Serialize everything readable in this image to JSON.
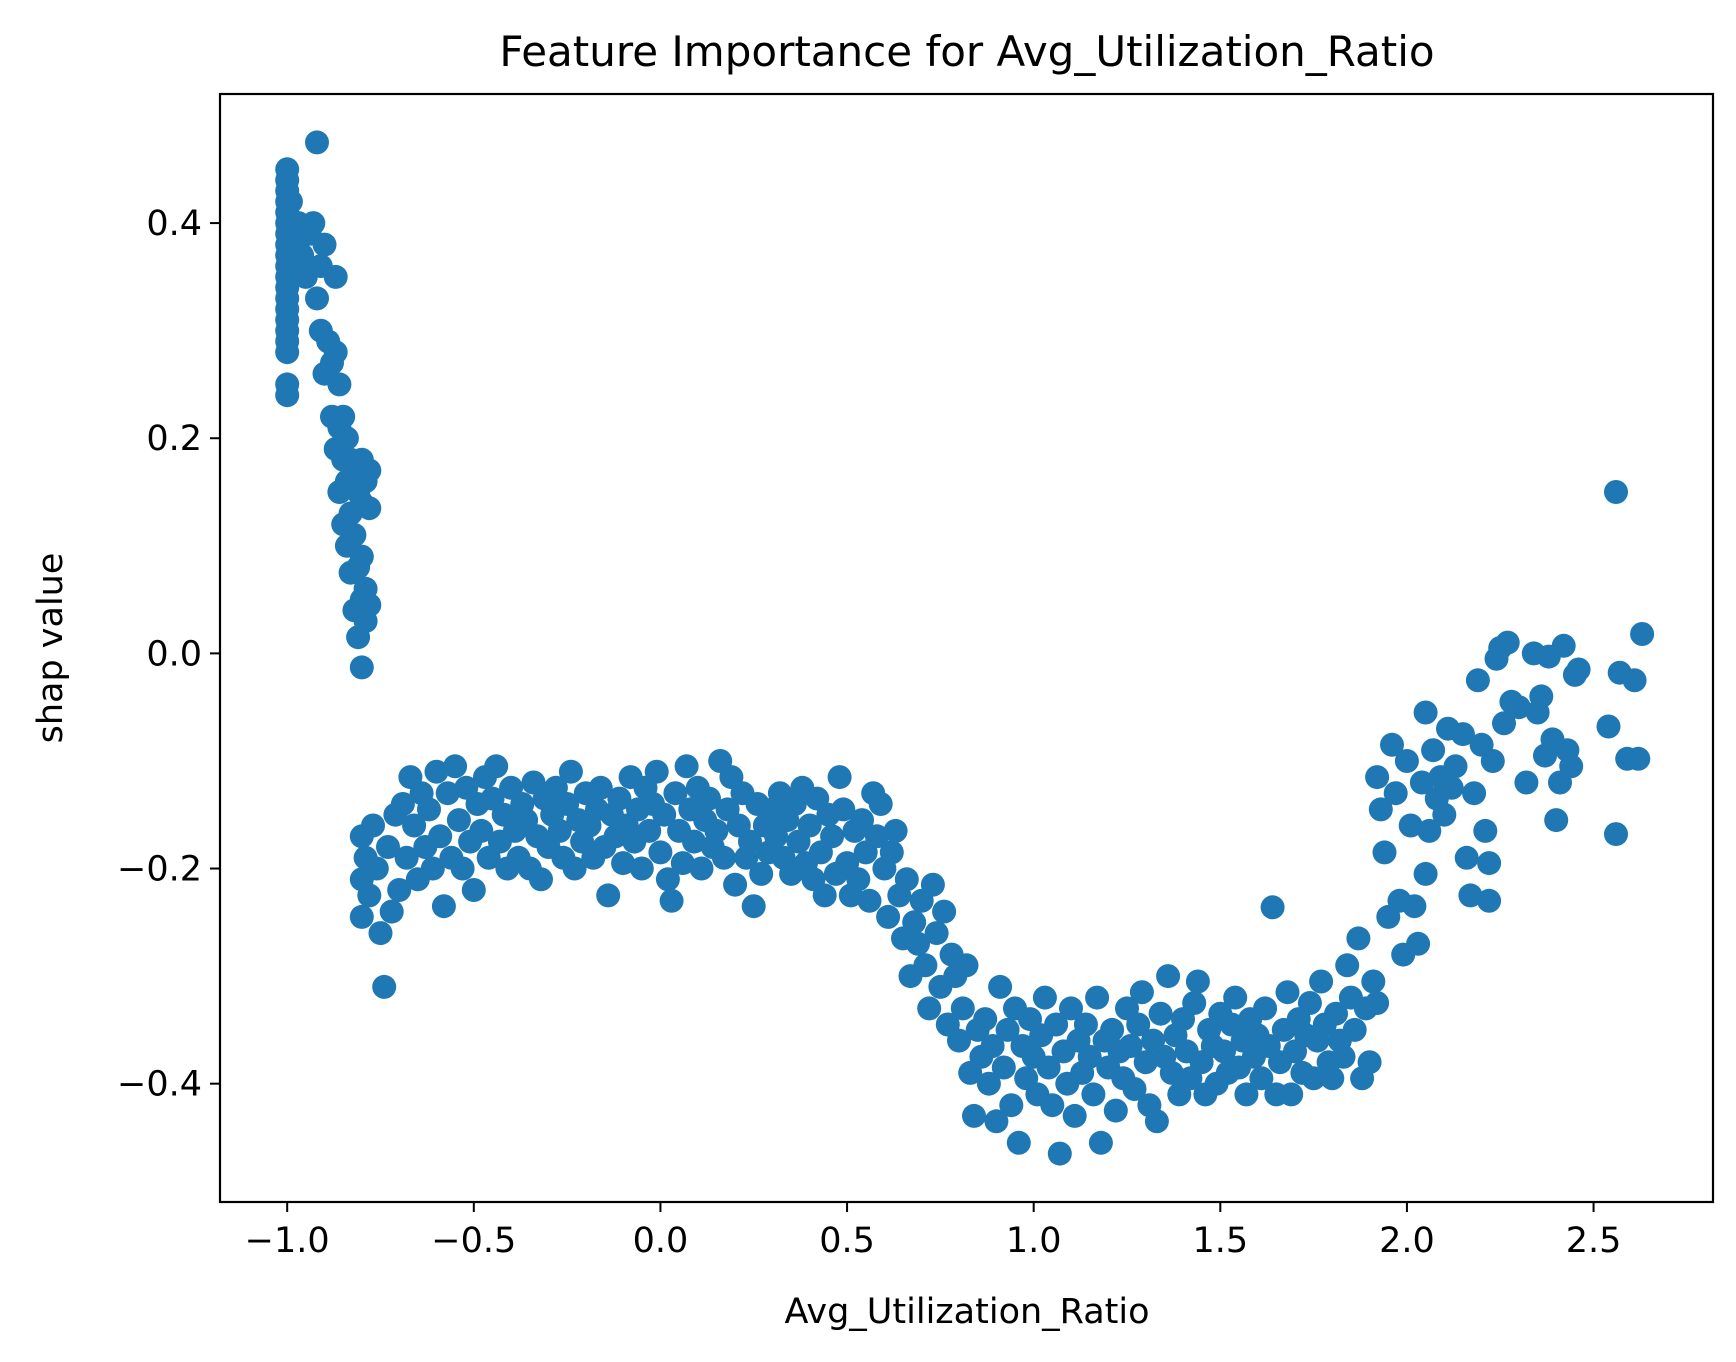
{
  "chart_data": {
    "type": "scatter",
    "title": "Feature Importance for Avg_Utilization_Ratio",
    "xlabel": "Avg_Utilization_Ratio",
    "ylabel": "shap value",
    "xlim": [
      -1.18,
      2.82
    ],
    "ylim": [
      -0.51,
      0.52
    ],
    "xticks": [
      -1.0,
      -0.5,
      0.0,
      0.5,
      1.0,
      1.5,
      2.0,
      2.5
    ],
    "xtick_labels": [
      "−1.0",
      "−0.5",
      "0.0",
      "0.5",
      "1.0",
      "1.5",
      "2.0",
      "2.5"
    ],
    "yticks": [
      -0.4,
      -0.2,
      0.0,
      0.2,
      0.4
    ],
    "ytick_labels": [
      "−0.4",
      "−0.2",
      "0.0",
      "0.2",
      "0.4"
    ],
    "grid": false,
    "color": "#1f77b4",
    "points": [
      [
        -1.0,
        0.45
      ],
      [
        -1.0,
        0.44
      ],
      [
        -1.0,
        0.43
      ],
      [
        -1.0,
        0.42
      ],
      [
        -1.0,
        0.41
      ],
      [
        -1.0,
        0.4
      ],
      [
        -1.0,
        0.39
      ],
      [
        -1.0,
        0.38
      ],
      [
        -1.0,
        0.37
      ],
      [
        -1.0,
        0.36
      ],
      [
        -1.0,
        0.35
      ],
      [
        -1.0,
        0.34
      ],
      [
        -1.0,
        0.33
      ],
      [
        -1.0,
        0.32
      ],
      [
        -1.0,
        0.31
      ],
      [
        -1.0,
        0.3
      ],
      [
        -1.0,
        0.29
      ],
      [
        -1.0,
        0.28
      ],
      [
        -1.0,
        0.25
      ],
      [
        -1.0,
        0.24
      ],
      [
        -0.99,
        0.42
      ],
      [
        -0.99,
        0.36
      ],
      [
        -0.98,
        0.38
      ],
      [
        -0.97,
        0.4
      ],
      [
        -0.96,
        0.37
      ],
      [
        -0.95,
        0.35
      ],
      [
        -0.94,
        0.39
      ],
      [
        -0.93,
        0.4
      ],
      [
        -0.92,
        0.475
      ],
      [
        -0.92,
        0.33
      ],
      [
        -0.91,
        0.36
      ],
      [
        -0.91,
        0.3
      ],
      [
        -0.9,
        0.38
      ],
      [
        -0.9,
        0.26
      ],
      [
        -0.89,
        0.29
      ],
      [
        -0.88,
        0.27
      ],
      [
        -0.88,
        0.22
      ],
      [
        -0.87,
        0.35
      ],
      [
        -0.87,
        0.28
      ],
      [
        -0.87,
        0.19
      ],
      [
        -0.86,
        0.25
      ],
      [
        -0.86,
        0.21
      ],
      [
        -0.86,
        0.15
      ],
      [
        -0.85,
        0.22
      ],
      [
        -0.85,
        0.18
      ],
      [
        -0.85,
        0.12
      ],
      [
        -0.84,
        0.2
      ],
      [
        -0.84,
        0.16
      ],
      [
        -0.84,
        0.1
      ],
      [
        -0.83,
        0.18
      ],
      [
        -0.83,
        0.13
      ],
      [
        -0.83,
        0.075
      ],
      [
        -0.82,
        0.17
      ],
      [
        -0.82,
        0.11
      ],
      [
        -0.82,
        0.04
      ],
      [
        -0.81,
        0.15
      ],
      [
        -0.81,
        0.08
      ],
      [
        -0.81,
        0.015
      ],
      [
        -0.8,
        0.18
      ],
      [
        -0.8,
        0.14
      ],
      [
        -0.8,
        0.09
      ],
      [
        -0.8,
        0.05
      ],
      [
        -0.8,
        -0.013
      ],
      [
        -0.79,
        0.16
      ],
      [
        -0.79,
        0.06
      ],
      [
        -0.79,
        0.03
      ],
      [
        -0.78,
        0.17
      ],
      [
        -0.78,
        0.135
      ],
      [
        -0.78,
        0.045
      ],
      [
        -0.8,
        -0.17
      ],
      [
        -0.8,
        -0.21
      ],
      [
        -0.8,
        -0.245
      ],
      [
        -0.79,
        -0.19
      ],
      [
        -0.78,
        -0.225
      ],
      [
        -0.77,
        -0.16
      ],
      [
        -0.76,
        -0.2
      ],
      [
        -0.75,
        -0.26
      ],
      [
        -0.74,
        -0.31
      ],
      [
        -0.73,
        -0.18
      ],
      [
        -0.72,
        -0.24
      ],
      [
        -0.71,
        -0.15
      ],
      [
        -0.7,
        -0.22
      ],
      [
        -0.69,
        -0.14
      ],
      [
        -0.68,
        -0.19
      ],
      [
        -0.67,
        -0.115
      ],
      [
        -0.66,
        -0.16
      ],
      [
        -0.65,
        -0.21
      ],
      [
        -0.64,
        -0.13
      ],
      [
        -0.63,
        -0.18
      ],
      [
        -0.62,
        -0.145
      ],
      [
        -0.61,
        -0.2
      ],
      [
        -0.6,
        -0.11
      ],
      [
        -0.59,
        -0.17
      ],
      [
        -0.58,
        -0.235
      ],
      [
        -0.57,
        -0.13
      ],
      [
        -0.56,
        -0.19
      ],
      [
        -0.55,
        -0.105
      ],
      [
        -0.54,
        -0.155
      ],
      [
        -0.53,
        -0.2
      ],
      [
        -0.52,
        -0.125
      ],
      [
        -0.51,
        -0.175
      ],
      [
        -0.5,
        -0.22
      ],
      [
        -0.49,
        -0.14
      ],
      [
        -0.48,
        -0.165
      ],
      [
        -0.47,
        -0.115
      ],
      [
        -0.46,
        -0.19
      ],
      [
        -0.45,
        -0.135
      ],
      [
        -0.44,
        -0.105
      ],
      [
        -0.43,
        -0.175
      ],
      [
        -0.42,
        -0.15
      ],
      [
        -0.41,
        -0.2
      ],
      [
        -0.4,
        -0.125
      ],
      [
        -0.39,
        -0.165
      ],
      [
        -0.38,
        -0.19
      ],
      [
        -0.37,
        -0.14
      ],
      [
        -0.36,
        -0.155
      ],
      [
        -0.35,
        -0.2
      ],
      [
        -0.34,
        -0.12
      ],
      [
        -0.33,
        -0.17
      ],
      [
        -0.32,
        -0.21
      ],
      [
        -0.31,
        -0.135
      ],
      [
        -0.3,
        -0.18
      ],
      [
        -0.29,
        -0.15
      ],
      [
        -0.28,
        -0.125
      ],
      [
        -0.27,
        -0.165
      ],
      [
        -0.26,
        -0.19
      ],
      [
        -0.25,
        -0.14
      ],
      [
        -0.24,
        -0.11
      ],
      [
        -0.23,
        -0.2
      ],
      [
        -0.22,
        -0.155
      ],
      [
        -0.21,
        -0.175
      ],
      [
        -0.2,
        -0.13
      ],
      [
        -0.19,
        -0.16
      ],
      [
        -0.18,
        -0.19
      ],
      [
        -0.17,
        -0.145
      ],
      [
        -0.16,
        -0.125
      ],
      [
        -0.15,
        -0.18
      ],
      [
        -0.14,
        -0.225
      ],
      [
        -0.13,
        -0.15
      ],
      [
        -0.12,
        -0.17
      ],
      [
        -0.11,
        -0.135
      ],
      [
        -0.1,
        -0.195
      ],
      [
        -0.09,
        -0.16
      ],
      [
        -0.08,
        -0.115
      ],
      [
        -0.07,
        -0.175
      ],
      [
        -0.06,
        -0.145
      ],
      [
        -0.05,
        -0.2
      ],
      [
        -0.04,
        -0.125
      ],
      [
        -0.03,
        -0.165
      ],
      [
        -0.02,
        -0.14
      ],
      [
        -0.01,
        -0.11
      ],
      [
        0.0,
        -0.185
      ],
      [
        0.01,
        -0.15
      ],
      [
        0.02,
        -0.21
      ],
      [
        0.03,
        -0.23
      ],
      [
        0.04,
        -0.13
      ],
      [
        0.05,
        -0.165
      ],
      [
        0.06,
        -0.195
      ],
      [
        0.07,
        -0.105
      ],
      [
        0.08,
        -0.145
      ],
      [
        0.09,
        -0.175
      ],
      [
        0.1,
        -0.125
      ],
      [
        0.11,
        -0.2
      ],
      [
        0.12,
        -0.155
      ],
      [
        0.13,
        -0.135
      ],
      [
        0.14,
        -0.18
      ],
      [
        0.15,
        -0.165
      ],
      [
        0.16,
        -0.1
      ],
      [
        0.17,
        -0.19
      ],
      [
        0.18,
        -0.145
      ],
      [
        0.19,
        -0.115
      ],
      [
        0.2,
        -0.215
      ],
      [
        0.21,
        -0.16
      ],
      [
        0.22,
        -0.13
      ],
      [
        0.23,
        -0.19
      ],
      [
        0.24,
        -0.175
      ],
      [
        0.25,
        -0.235
      ],
      [
        0.26,
        -0.14
      ],
      [
        0.27,
        -0.205
      ],
      [
        0.28,
        -0.16
      ],
      [
        0.29,
        -0.185
      ],
      [
        0.3,
        -0.145
      ],
      [
        0.31,
        -0.17
      ],
      [
        0.32,
        -0.13
      ],
      [
        0.33,
        -0.19
      ],
      [
        0.34,
        -0.155
      ],
      [
        0.35,
        -0.205
      ],
      [
        0.36,
        -0.14
      ],
      [
        0.37,
        -0.175
      ],
      [
        0.38,
        -0.125
      ],
      [
        0.39,
        -0.195
      ],
      [
        0.4,
        -0.16
      ],
      [
        0.41,
        -0.21
      ],
      [
        0.42,
        -0.135
      ],
      [
        0.43,
        -0.185
      ],
      [
        0.44,
        -0.225
      ],
      [
        0.45,
        -0.15
      ],
      [
        0.46,
        -0.17
      ],
      [
        0.47,
        -0.205
      ],
      [
        0.48,
        -0.115
      ],
      [
        0.49,
        -0.145
      ],
      [
        0.5,
        -0.195
      ],
      [
        0.51,
        -0.225
      ],
      [
        0.52,
        -0.165
      ],
      [
        0.53,
        -0.21
      ],
      [
        0.54,
        -0.155
      ],
      [
        0.55,
        -0.185
      ],
      [
        0.56,
        -0.23
      ],
      [
        0.57,
        -0.13
      ],
      [
        0.58,
        -0.17
      ],
      [
        0.59,
        -0.14
      ],
      [
        0.6,
        -0.2
      ],
      [
        0.61,
        -0.245
      ],
      [
        0.62,
        -0.185
      ],
      [
        0.63,
        -0.165
      ],
      [
        0.64,
        -0.225
      ],
      [
        0.65,
        -0.265
      ],
      [
        0.66,
        -0.21
      ],
      [
        0.67,
        -0.3
      ],
      [
        0.68,
        -0.25
      ],
      [
        0.69,
        -0.27
      ],
      [
        0.7,
        -0.23
      ],
      [
        0.71,
        -0.29
      ],
      [
        0.72,
        -0.33
      ],
      [
        0.73,
        -0.215
      ],
      [
        0.74,
        -0.26
      ],
      [
        0.75,
        -0.31
      ],
      [
        0.76,
        -0.24
      ],
      [
        0.77,
        -0.345
      ],
      [
        0.78,
        -0.28
      ],
      [
        0.79,
        -0.3
      ],
      [
        0.8,
        -0.36
      ],
      [
        0.81,
        -0.33
      ],
      [
        0.82,
        -0.29
      ],
      [
        0.83,
        -0.39
      ],
      [
        0.84,
        -0.43
      ],
      [
        0.85,
        -0.35
      ],
      [
        0.86,
        -0.375
      ],
      [
        0.87,
        -0.34
      ],
      [
        0.88,
        -0.4
      ],
      [
        0.89,
        -0.365
      ],
      [
        0.9,
        -0.435
      ],
      [
        0.91,
        -0.31
      ],
      [
        0.92,
        -0.385
      ],
      [
        0.93,
        -0.35
      ],
      [
        0.94,
        -0.42
      ],
      [
        0.95,
        -0.33
      ],
      [
        0.96,
        -0.455
      ],
      [
        0.97,
        -0.365
      ],
      [
        0.98,
        -0.395
      ],
      [
        0.99,
        -0.34
      ],
      [
        1.0,
        -0.375
      ],
      [
        1.01,
        -0.41
      ],
      [
        1.02,
        -0.355
      ],
      [
        1.03,
        -0.32
      ],
      [
        1.04,
        -0.385
      ],
      [
        1.05,
        -0.42
      ],
      [
        1.06,
        -0.345
      ],
      [
        1.07,
        -0.465
      ],
      [
        1.08,
        -0.37
      ],
      [
        1.09,
        -0.4
      ],
      [
        1.1,
        -0.33
      ],
      [
        1.11,
        -0.43
      ],
      [
        1.12,
        -0.36
      ],
      [
        1.13,
        -0.39
      ],
      [
        1.14,
        -0.345
      ],
      [
        1.15,
        -0.375
      ],
      [
        1.16,
        -0.41
      ],
      [
        1.17,
        -0.32
      ],
      [
        1.18,
        -0.455
      ],
      [
        1.19,
        -0.36
      ],
      [
        1.2,
        -0.385
      ],
      [
        1.21,
        -0.35
      ],
      [
        1.22,
        -0.425
      ],
      [
        1.23,
        -0.37
      ],
      [
        1.24,
        -0.395
      ],
      [
        1.25,
        -0.33
      ],
      [
        1.26,
        -0.365
      ],
      [
        1.27,
        -0.405
      ],
      [
        1.28,
        -0.345
      ],
      [
        1.29,
        -0.315
      ],
      [
        1.3,
        -0.38
      ],
      [
        1.31,
        -0.42
      ],
      [
        1.32,
        -0.36
      ],
      [
        1.33,
        -0.435
      ],
      [
        1.34,
        -0.335
      ],
      [
        1.35,
        -0.375
      ],
      [
        1.36,
        -0.3
      ],
      [
        1.37,
        -0.39
      ],
      [
        1.38,
        -0.355
      ],
      [
        1.39,
        -0.41
      ],
      [
        1.4,
        -0.34
      ],
      [
        1.41,
        -0.37
      ],
      [
        1.42,
        -0.395
      ],
      [
        1.43,
        -0.325
      ],
      [
        1.44,
        -0.305
      ],
      [
        1.45,
        -0.38
      ],
      [
        1.46,
        -0.41
      ],
      [
        1.47,
        -0.35
      ],
      [
        1.48,
        -0.365
      ],
      [
        1.49,
        -0.4
      ],
      [
        1.5,
        -0.335
      ],
      [
        1.51,
        -0.37
      ],
      [
        1.52,
        -0.39
      ],
      [
        1.53,
        -0.345
      ],
      [
        1.54,
        -0.32
      ],
      [
        1.55,
        -0.385
      ],
      [
        1.56,
        -0.36
      ],
      [
        1.57,
        -0.41
      ],
      [
        1.58,
        -0.34
      ],
      [
        1.59,
        -0.375
      ],
      [
        1.6,
        -0.355
      ],
      [
        1.61,
        -0.395
      ],
      [
        1.62,
        -0.33
      ],
      [
        1.63,
        -0.365
      ],
      [
        1.64,
        -0.236
      ],
      [
        1.65,
        -0.41
      ],
      [
        1.66,
        -0.38
      ],
      [
        1.67,
        -0.35
      ],
      [
        1.68,
        -0.315
      ],
      [
        1.69,
        -0.41
      ],
      [
        1.7,
        -0.37
      ],
      [
        1.71,
        -0.34
      ],
      [
        1.72,
        -0.39
      ],
      [
        1.73,
        -0.355
      ],
      [
        1.74,
        -0.325
      ],
      [
        1.75,
        -0.395
      ],
      [
        1.76,
        -0.36
      ],
      [
        1.77,
        -0.305
      ],
      [
        1.78,
        -0.345
      ],
      [
        1.79,
        -0.38
      ],
      [
        1.8,
        -0.395
      ],
      [
        1.81,
        -0.335
      ],
      [
        1.82,
        -0.36
      ],
      [
        1.83,
        -0.375
      ],
      [
        1.84,
        -0.29
      ],
      [
        1.85,
        -0.32
      ],
      [
        1.86,
        -0.35
      ],
      [
        1.87,
        -0.265
      ],
      [
        1.88,
        -0.395
      ],
      [
        1.89,
        -0.33
      ],
      [
        1.9,
        -0.38
      ],
      [
        1.91,
        -0.305
      ],
      [
        1.92,
        -0.325
      ],
      [
        1.92,
        -0.115
      ],
      [
        1.93,
        -0.145
      ],
      [
        1.94,
        -0.185
      ],
      [
        1.95,
        -0.245
      ],
      [
        1.96,
        -0.085
      ],
      [
        1.97,
        -0.13
      ],
      [
        1.98,
        -0.23
      ],
      [
        1.99,
        -0.28
      ],
      [
        2.0,
        -0.1
      ],
      [
        2.01,
        -0.16
      ],
      [
        2.02,
        -0.235
      ],
      [
        2.03,
        -0.27
      ],
      [
        2.04,
        -0.12
      ],
      [
        2.05,
        -0.205
      ],
      [
        2.05,
        -0.055
      ],
      [
        2.06,
        -0.165
      ],
      [
        2.07,
        -0.09
      ],
      [
        2.08,
        -0.135
      ],
      [
        2.09,
        -0.115
      ],
      [
        2.1,
        -0.15
      ],
      [
        2.11,
        -0.07
      ],
      [
        2.12,
        -0.125
      ],
      [
        2.13,
        -0.105
      ],
      [
        2.15,
        -0.075
      ],
      [
        2.16,
        -0.19
      ],
      [
        2.17,
        -0.225
      ],
      [
        2.18,
        -0.13
      ],
      [
        2.19,
        -0.025
      ],
      [
        2.2,
        -0.085
      ],
      [
        2.21,
        -0.165
      ],
      [
        2.22,
        -0.23
      ],
      [
        2.22,
        -0.195
      ],
      [
        2.23,
        -0.1
      ],
      [
        2.24,
        -0.005
      ],
      [
        2.25,
        0.005
      ],
      [
        2.26,
        -0.065
      ],
      [
        2.27,
        0.01
      ],
      [
        2.28,
        -0.045
      ],
      [
        2.3,
        -0.05
      ],
      [
        2.32,
        -0.12
      ],
      [
        2.34,
        0.0
      ],
      [
        2.35,
        -0.055
      ],
      [
        2.36,
        -0.04
      ],
      [
        2.37,
        -0.095
      ],
      [
        2.38,
        -0.003
      ],
      [
        2.39,
        -0.08
      ],
      [
        2.4,
        -0.155
      ],
      [
        2.41,
        -0.12
      ],
      [
        2.42,
        0.007
      ],
      [
        2.43,
        -0.09
      ],
      [
        2.44,
        -0.105
      ],
      [
        2.45,
        -0.02
      ],
      [
        2.46,
        -0.015
      ],
      [
        2.54,
        -0.068
      ],
      [
        2.56,
        0.15
      ],
      [
        2.56,
        -0.168
      ],
      [
        2.57,
        -0.018
      ],
      [
        2.59,
        -0.098
      ],
      [
        2.61,
        -0.025
      ],
      [
        2.62,
        -0.098
      ],
      [
        2.63,
        0.018
      ]
    ]
  }
}
